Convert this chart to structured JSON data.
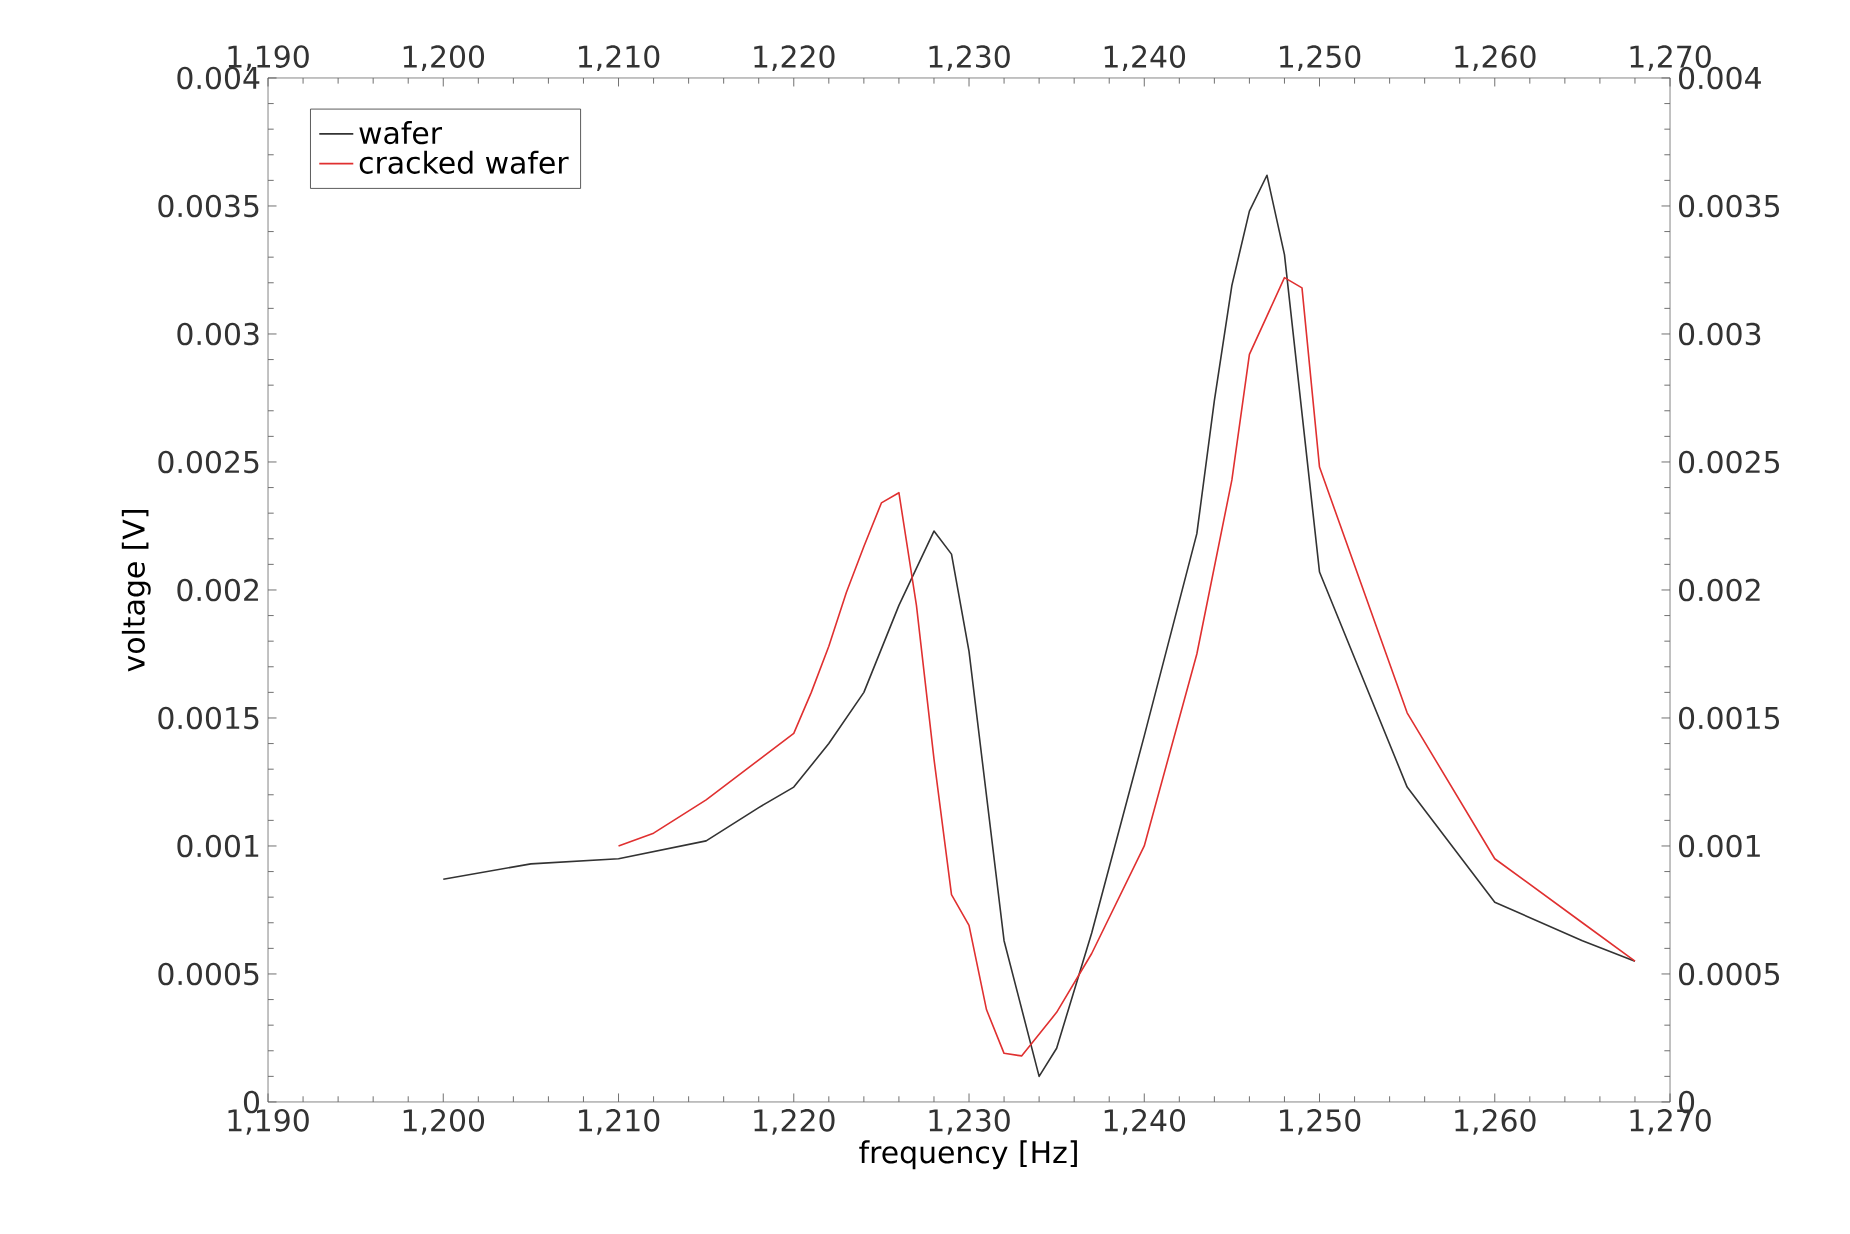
{
  "chart_data": {
    "type": "line",
    "xlabel": "frequency [Hz]",
    "ylabel": "voltage [V]",
    "xlim": [
      1190,
      1270
    ],
    "x2lim": [
      1190,
      1270
    ],
    "xticks": [
      {
        "value": 1190,
        "label": "1,190"
      },
      {
        "value": 1200,
        "label": "1,200"
      },
      {
        "value": 1210,
        "label": "1,210"
      },
      {
        "value": 1220,
        "label": "1,220"
      },
      {
        "value": 1230,
        "label": "1,230"
      },
      {
        "value": 1240,
        "label": "1,240"
      },
      {
        "value": 1250,
        "label": "1,250"
      },
      {
        "value": 1260,
        "label": "1,260"
      },
      {
        "value": 1270,
        "label": "1,270"
      }
    ],
    "x2ticks": [
      {
        "value": 1190,
        "label": "1,190"
      },
      {
        "value": 1200,
        "label": "1,200"
      },
      {
        "value": 1210,
        "label": "1,210"
      },
      {
        "value": 1220,
        "label": "1,220"
      },
      {
        "value": 1230,
        "label": "1,230"
      },
      {
        "value": 1240,
        "label": "1,240"
      },
      {
        "value": 1250,
        "label": "1,250"
      },
      {
        "value": 1260,
        "label": "1,260"
      },
      {
        "value": 1270,
        "label": "1,270"
      }
    ],
    "ylim": [
      0,
      0.004
    ],
    "yticks": [
      0,
      0.0005,
      0.001,
      0.0015,
      0.002,
      0.0025,
      0.003,
      0.0035,
      0.004
    ],
    "y2lim": [
      0,
      0.004
    ],
    "y2ticks": [
      0,
      0.0005,
      0.001,
      0.0015,
      0.002,
      0.0025,
      0.003,
      0.0035,
      0.004
    ],
    "grid": false,
    "legend": "top left",
    "marker": "none",
    "line_style": "solid",
    "series": [
      {
        "name": "wafer",
        "color": "#333333",
        "x": [
          1200,
          1205,
          1210,
          1215,
          1218,
          1220,
          1222,
          1224,
          1226,
          1228,
          1229,
          1230,
          1232,
          1234,
          1235,
          1237,
          1240,
          1243,
          1244,
          1245,
          1246,
          1247,
          1248,
          1250,
          1255,
          1260,
          1265,
          1268
        ],
        "values": [
          0.00087,
          0.00093,
          0.00095,
          0.00102,
          0.00115,
          0.00123,
          0.0014,
          0.0016,
          0.00194,
          0.00223,
          0.00214,
          0.00176,
          0.00063,
          0.0001,
          0.00021,
          0.00066,
          0.00143,
          0.00222,
          0.00274,
          0.00319,
          0.00348,
          0.00362,
          0.00331,
          0.00207,
          0.00123,
          0.00078,
          0.00063,
          0.00055
        ]
      },
      {
        "name": "cracked wafer",
        "color": "#e03030",
        "x": [
          1210,
          1212,
          1215,
          1220,
          1221,
          1222,
          1223,
          1224,
          1225,
          1226,
          1227,
          1228,
          1229,
          1230,
          1231,
          1232,
          1233,
          1235,
          1237,
          1240,
          1243,
          1245,
          1246,
          1248,
          1249,
          1250,
          1255,
          1260,
          1265,
          1268
        ],
        "values": [
          0.001,
          0.00105,
          0.00118,
          0.00144,
          0.0016,
          0.00178,
          0.00199,
          0.00217,
          0.00234,
          0.00238,
          0.00194,
          0.00134,
          0.00081,
          0.00069,
          0.00036,
          0.00019,
          0.00018,
          0.00035,
          0.00058,
          0.001,
          0.00175,
          0.00243,
          0.00292,
          0.00322,
          0.00318,
          0.00248,
          0.00152,
          0.00095,
          0.0007,
          0.00055
        ]
      }
    ]
  }
}
